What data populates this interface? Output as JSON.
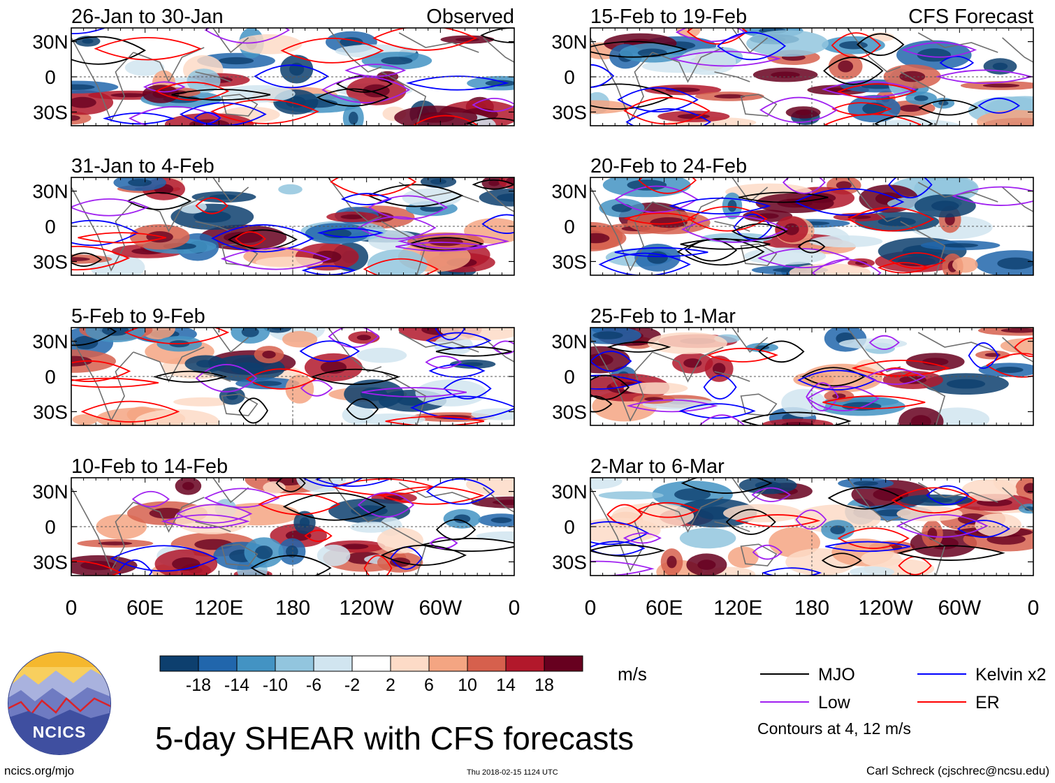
{
  "chart_data": {
    "type": "heatmap",
    "title": "5-day SHEAR with CFS forecasts",
    "panels": [
      {
        "label": "26-Jan to 30-Jan",
        "tag": "Observed",
        "column": "left",
        "row": 0
      },
      {
        "label": "31-Jan to 4-Feb",
        "tag": "",
        "column": "left",
        "row": 1
      },
      {
        "label": "5-Feb to 9-Feb",
        "tag": "",
        "column": "left",
        "row": 2
      },
      {
        "label": "10-Feb to 14-Feb",
        "tag": "",
        "column": "left",
        "row": 3
      },
      {
        "label": "15-Feb to 19-Feb",
        "tag": "CFS Forecast",
        "column": "right",
        "row": 0
      },
      {
        "label": "20-Feb to 24-Feb",
        "tag": "",
        "column": "right",
        "row": 1
      },
      {
        "label": "25-Feb to 1-Mar",
        "tag": "",
        "column": "right",
        "row": 2
      },
      {
        "label": "2-Mar to 6-Mar",
        "tag": "",
        "column": "right",
        "row": 3
      }
    ],
    "x_ticks": [
      "0",
      "60E",
      "120E",
      "180",
      "120W",
      "60W",
      "0"
    ],
    "y_ticks": [
      "30N",
      "0",
      "30S"
    ],
    "colorbar": {
      "units": "m/s",
      "tick_labels": [
        "-18",
        "-14",
        "-10",
        "-6",
        "-2",
        "2",
        "6",
        "10",
        "14",
        "18"
      ],
      "colors": [
        "#0d3f6e",
        "#2166ac",
        "#4393c3",
        "#92c5de",
        "#d1e5f0",
        "#ffffff",
        "#fddbc7",
        "#f4a582",
        "#d6604d",
        "#b2182b",
        "#67001f"
      ]
    },
    "legend": [
      {
        "name": "MJO",
        "color": "#000000"
      },
      {
        "name": "Kelvin x2",
        "color": "#0000ff"
      },
      {
        "name": "Low",
        "color": "#a020f0"
      },
      {
        "name": "ER",
        "color": "#ff0000"
      }
    ],
    "contour_note": "Contours at 4, 12 m/s"
  },
  "logo": {
    "text": "NCICS"
  },
  "footer": {
    "left": "ncics.org/mjo",
    "center": "Thu 2018-02-15 1124 UTC",
    "right": "Carl Schreck (cjschrec@ncsu.edu)"
  }
}
